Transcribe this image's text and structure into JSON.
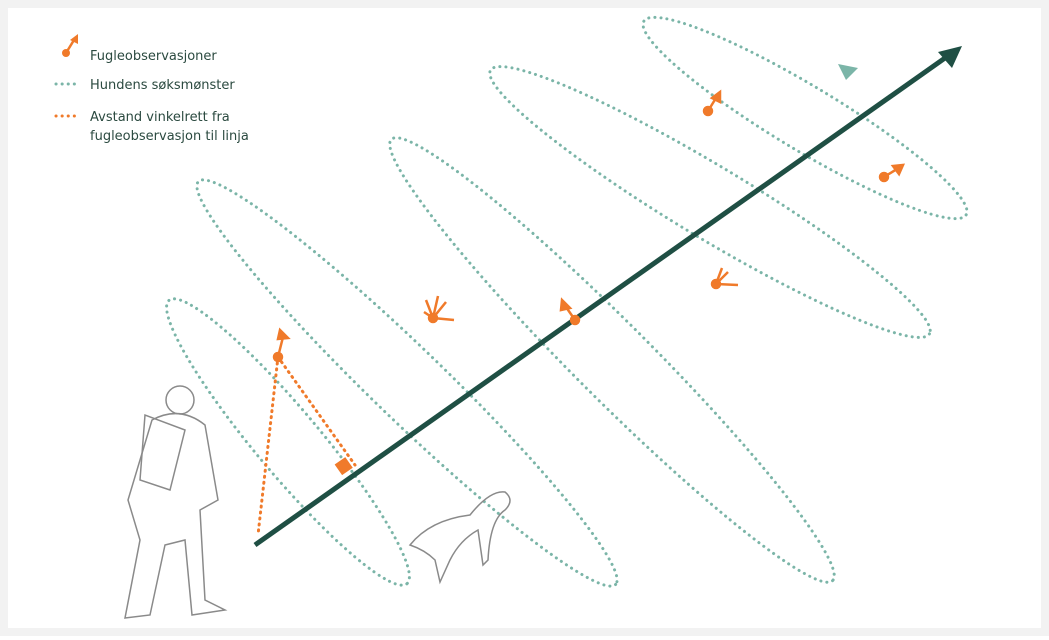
{
  "legend": [
    {
      "label": [
        "Fugleobservasjoner"
      ]
    },
    {
      "label": [
        "Hundens søksmønster"
      ]
    },
    {
      "label": [
        "Avstand vinkelrett fra",
        "fugleobservasjon til linja"
      ]
    }
  ]
}
